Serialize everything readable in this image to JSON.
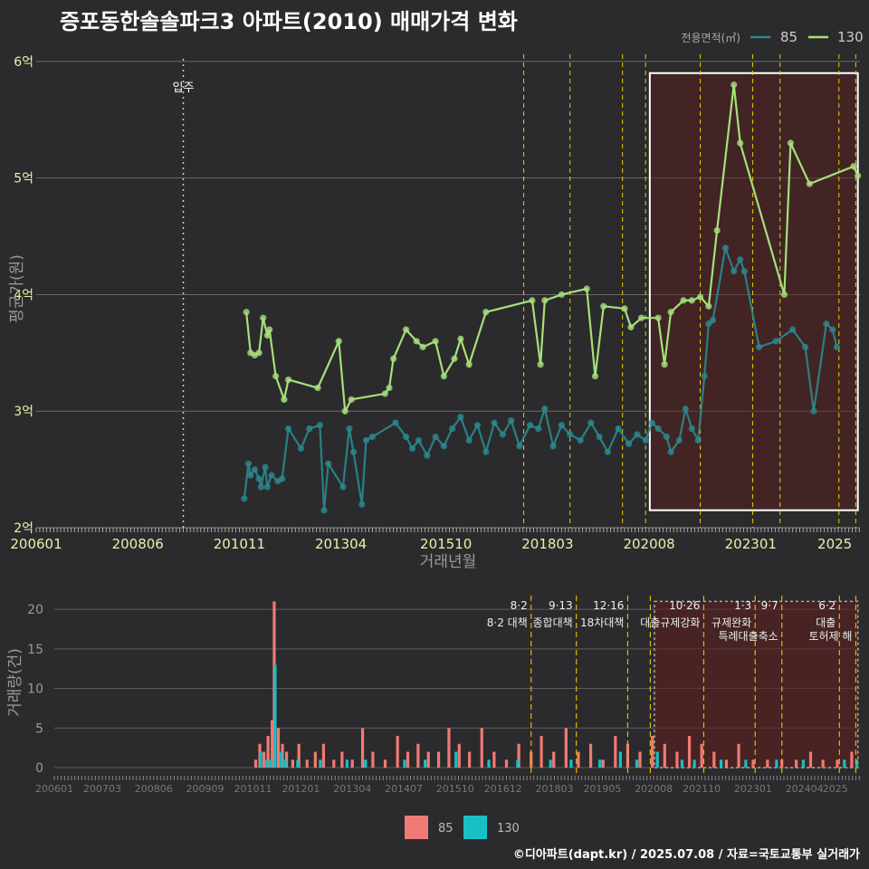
{
  "title": "증포동한솔솔파크3 아파트(2010) 매매가격 변화",
  "credit": "©디아파트(dapt.kr) / 2025.07.08 / 자료=국토교통부 실거래가",
  "colors": {
    "series85_top": "#2a8a8e",
    "series130_top": "#a6e07a",
    "series85_bottom": "#f07a74",
    "series130_bottom": "#18c0c4",
    "policy": "#e5d100",
    "box": "#ffffff",
    "shade": "#5a1e1e"
  },
  "chart_data": [
    {
      "type": "line",
      "title": "증포동한솔솔파크3 아파트(2010) 매매가격 변화",
      "xlabel": "거래년월",
      "ylabel": "평균가(원)",
      "x_tick_labels": [
        "200601",
        "200806",
        "201011",
        "201304",
        "201510",
        "201803",
        "202008",
        "202301",
        "2025"
      ],
      "y_tick_labels": [
        "2억",
        "3억",
        "4억",
        "5억",
        "6억"
      ],
      "y_ticks": [
        2,
        3,
        4,
        5,
        6
      ],
      "ylim": [
        2,
        6.1
      ],
      "xlim": [
        2006.0,
        2025.6
      ],
      "legend_title": "전용면적(㎡)",
      "legend_position": "top-right",
      "annotation_move_in": {
        "label": "입주",
        "x": 2009.5
      },
      "series": [
        {
          "name": "85",
          "points": [
            [
              2010.95,
              2.25
            ],
            [
              2011.05,
              2.55
            ],
            [
              2011.1,
              2.45
            ],
            [
              2011.2,
              2.5
            ],
            [
              2011.3,
              2.42
            ],
            [
              2011.35,
              2.35
            ],
            [
              2011.45,
              2.52
            ],
            [
              2011.5,
              2.35
            ],
            [
              2011.6,
              2.45
            ],
            [
              2011.75,
              2.4
            ],
            [
              2011.85,
              2.42
            ],
            [
              2012.0,
              2.85
            ],
            [
              2012.3,
              2.68
            ],
            [
              2012.5,
              2.85
            ],
            [
              2012.75,
              2.88
            ],
            [
              2012.85,
              2.15
            ],
            [
              2012.95,
              2.55
            ],
            [
              2013.3,
              2.35
            ],
            [
              2013.45,
              2.85
            ],
            [
              2013.55,
              2.65
            ],
            [
              2013.75,
              2.2
            ],
            [
              2013.85,
              2.75
            ],
            [
              2014.0,
              2.78
            ],
            [
              2014.55,
              2.9
            ],
            [
              2014.8,
              2.78
            ],
            [
              2014.95,
              2.68
            ],
            [
              2015.1,
              2.75
            ],
            [
              2015.3,
              2.62
            ],
            [
              2015.5,
              2.78
            ],
            [
              2015.7,
              2.7
            ],
            [
              2015.9,
              2.85
            ],
            [
              2016.1,
              2.95
            ],
            [
              2016.3,
              2.75
            ],
            [
              2016.5,
              2.88
            ],
            [
              2016.7,
              2.65
            ],
            [
              2016.9,
              2.9
            ],
            [
              2017.1,
              2.8
            ],
            [
              2017.3,
              2.92
            ],
            [
              2017.5,
              2.7
            ],
            [
              2017.75,
              2.88
            ],
            [
              2017.95,
              2.85
            ],
            [
              2018.1,
              3.02
            ],
            [
              2018.3,
              2.7
            ],
            [
              2018.5,
              2.88
            ],
            [
              2018.7,
              2.8
            ],
            [
              2018.95,
              2.75
            ],
            [
              2019.2,
              2.9
            ],
            [
              2019.4,
              2.78
            ],
            [
              2019.6,
              2.65
            ],
            [
              2019.85,
              2.85
            ],
            [
              2020.1,
              2.72
            ],
            [
              2020.3,
              2.8
            ],
            [
              2020.5,
              2.75
            ],
            [
              2020.65,
              2.9
            ],
            [
              2020.8,
              2.85
            ],
            [
              2021.0,
              2.78
            ],
            [
              2021.1,
              2.65
            ],
            [
              2021.3,
              2.75
            ],
            [
              2021.45,
              3.02
            ],
            [
              2021.6,
              2.85
            ],
            [
              2021.75,
              2.75
            ],
            [
              2021.9,
              3.3
            ],
            [
              2022.0,
              3.75
            ],
            [
              2022.1,
              3.78
            ],
            [
              2022.4,
              4.4
            ],
            [
              2022.6,
              4.2
            ],
            [
              2022.75,
              4.3
            ],
            [
              2022.85,
              4.2
            ],
            [
              2023.2,
              3.55
            ],
            [
              2023.6,
              3.6
            ],
            [
              2024.0,
              3.7
            ],
            [
              2024.3,
              3.55
            ],
            [
              2024.5,
              3.0
            ],
            [
              2024.8,
              3.75
            ],
            [
              2024.95,
              3.7
            ],
            [
              2025.05,
              3.55
            ]
          ]
        },
        {
          "name": "130",
          "points": [
            [
              2011.0,
              3.85
            ],
            [
              2011.1,
              3.5
            ],
            [
              2011.2,
              3.48
            ],
            [
              2011.3,
              3.5
            ],
            [
              2011.4,
              3.8
            ],
            [
              2011.5,
              3.65
            ],
            [
              2011.55,
              3.7
            ],
            [
              2011.7,
              3.3
            ],
            [
              2011.9,
              3.1
            ],
            [
              2012.0,
              3.27
            ],
            [
              2012.7,
              3.2
            ],
            [
              2013.2,
              3.6
            ],
            [
              2013.35,
              3.0
            ],
            [
              2013.5,
              3.1
            ],
            [
              2014.3,
              3.15
            ],
            [
              2014.4,
              3.2
            ],
            [
              2014.5,
              3.45
            ],
            [
              2014.8,
              3.7
            ],
            [
              2015.05,
              3.6
            ],
            [
              2015.2,
              3.55
            ],
            [
              2015.5,
              3.6
            ],
            [
              2015.7,
              3.3
            ],
            [
              2015.95,
              3.45
            ],
            [
              2016.1,
              3.62
            ],
            [
              2016.3,
              3.4
            ],
            [
              2016.7,
              3.85
            ],
            [
              2017.8,
              3.95
            ],
            [
              2018.0,
              3.4
            ],
            [
              2018.1,
              3.95
            ],
            [
              2018.5,
              4.0
            ],
            [
              2019.1,
              4.05
            ],
            [
              2019.3,
              3.3
            ],
            [
              2019.5,
              3.9
            ],
            [
              2020.0,
              3.88
            ],
            [
              2020.15,
              3.72
            ],
            [
              2020.4,
              3.8
            ],
            [
              2020.8,
              3.8
            ],
            [
              2020.95,
              3.4
            ],
            [
              2021.1,
              3.85
            ],
            [
              2021.4,
              3.95
            ],
            [
              2021.6,
              3.95
            ],
            [
              2021.8,
              3.98
            ],
            [
              2022.0,
              3.9
            ],
            [
              2022.2,
              4.55
            ],
            [
              2022.6,
              5.8
            ],
            [
              2022.75,
              5.3
            ],
            [
              2023.8,
              4.0
            ],
            [
              2023.95,
              5.3
            ],
            [
              2024.4,
              4.95
            ],
            [
              2025.45,
              5.1
            ],
            [
              2025.55,
              5.02
            ]
          ]
        }
      ]
    },
    {
      "type": "bar",
      "ylabel": "거래량(건)",
      "x_tick_labels": [
        "200601",
        "200703",
        "200806",
        "200909",
        "201011",
        "201201",
        "201304",
        "201407",
        "201510",
        "201612",
        "201803",
        "201905",
        "202008",
        "202110",
        "202301",
        "202404",
        "2025"
      ],
      "y_ticks": [
        0,
        5,
        10,
        15,
        20
      ],
      "ylim": [
        0,
        21.5
      ],
      "legend_position": "bottom",
      "series": [
        {
          "name": "85",
          "values": [
            [
              2010.9,
              1
            ],
            [
              2011.0,
              3
            ],
            [
              2011.1,
              2
            ],
            [
              2011.2,
              4
            ],
            [
              2011.3,
              6
            ],
            [
              2011.35,
              21
            ],
            [
              2011.45,
              5
            ],
            [
              2011.55,
              3
            ],
            [
              2011.65,
              2
            ],
            [
              2011.8,
              1
            ],
            [
              2011.95,
              3
            ],
            [
              2012.15,
              1
            ],
            [
              2012.35,
              2
            ],
            [
              2012.55,
              3
            ],
            [
              2012.8,
              1
            ],
            [
              2013.0,
              2
            ],
            [
              2013.25,
              1
            ],
            [
              2013.5,
              5
            ],
            [
              2013.75,
              2
            ],
            [
              2014.05,
              1
            ],
            [
              2014.35,
              4
            ],
            [
              2014.6,
              2
            ],
            [
              2014.85,
              3
            ],
            [
              2015.1,
              2
            ],
            [
              2015.35,
              2
            ],
            [
              2015.6,
              5
            ],
            [
              2015.85,
              3
            ],
            [
              2016.1,
              2
            ],
            [
              2016.4,
              5
            ],
            [
              2016.7,
              2
            ],
            [
              2017.0,
              1
            ],
            [
              2017.3,
              3
            ],
            [
              2017.6,
              2
            ],
            [
              2017.85,
              4
            ],
            [
              2018.15,
              2
            ],
            [
              2018.45,
              5
            ],
            [
              2018.75,
              2
            ],
            [
              2019.05,
              3
            ],
            [
              2019.35,
              1
            ],
            [
              2019.65,
              4
            ],
            [
              2019.95,
              3
            ],
            [
              2020.25,
              2
            ],
            [
              2020.55,
              4
            ],
            [
              2020.85,
              3
            ],
            [
              2021.15,
              2
            ],
            [
              2021.45,
              4
            ],
            [
              2021.75,
              3
            ],
            [
              2022.05,
              2
            ],
            [
              2022.35,
              1
            ],
            [
              2022.65,
              3
            ],
            [
              2023.0,
              1
            ],
            [
              2023.35,
              1
            ],
            [
              2023.7,
              1
            ],
            [
              2024.05,
              1
            ],
            [
              2024.4,
              2
            ],
            [
              2024.7,
              1
            ],
            [
              2025.05,
              1
            ],
            [
              2025.4,
              2
            ]
          ]
        },
        {
          "name": "130",
          "values": [
            [
              2011.0,
              2
            ],
            [
              2011.15,
              1
            ],
            [
              2011.25,
              1
            ],
            [
              2011.35,
              13
            ],
            [
              2011.5,
              2
            ],
            [
              2011.6,
              1
            ],
            [
              2011.9,
              1
            ],
            [
              2012.45,
              1
            ],
            [
              2013.1,
              1
            ],
            [
              2013.55,
              1
            ],
            [
              2014.5,
              1
            ],
            [
              2015.0,
              1
            ],
            [
              2015.75,
              2
            ],
            [
              2016.55,
              1
            ],
            [
              2017.25,
              1
            ],
            [
              2018.05,
              1
            ],
            [
              2018.55,
              1
            ],
            [
              2019.25,
              1
            ],
            [
              2019.75,
              2
            ],
            [
              2020.15,
              1
            ],
            [
              2020.65,
              2
            ],
            [
              2021.25,
              1
            ],
            [
              2021.55,
              1
            ],
            [
              2022.2,
              1
            ],
            [
              2022.8,
              1
            ],
            [
              2023.55,
              1
            ],
            [
              2024.2,
              1
            ],
            [
              2025.2,
              1
            ],
            [
              2025.5,
              1
            ]
          ]
        }
      ]
    }
  ],
  "policies": [
    {
      "x": 2017.6,
      "date": "8·2",
      "label": "8·2 대책"
    },
    {
      "x": 2018.7,
      "date": "9·13",
      "label": "종합대책"
    },
    {
      "x": 2019.95,
      "date": "12·16",
      "label": "18차대책"
    },
    {
      "x": 2020.5,
      "date": "",
      "label": ""
    },
    {
      "x": 2021.8,
      "date": "10·26",
      "label": "대출규제강화"
    },
    {
      "x": 2023.05,
      "date": "1·3",
      "label": "규제완화"
    },
    {
      "x": 2023.7,
      "date": "9·7",
      "label": "특례대출축소"
    },
    {
      "x": 2025.1,
      "date": "6·2",
      "label": "대출"
    },
    {
      "x": 2025.5,
      "date": "",
      "label": "토허제 해"
    }
  ]
}
